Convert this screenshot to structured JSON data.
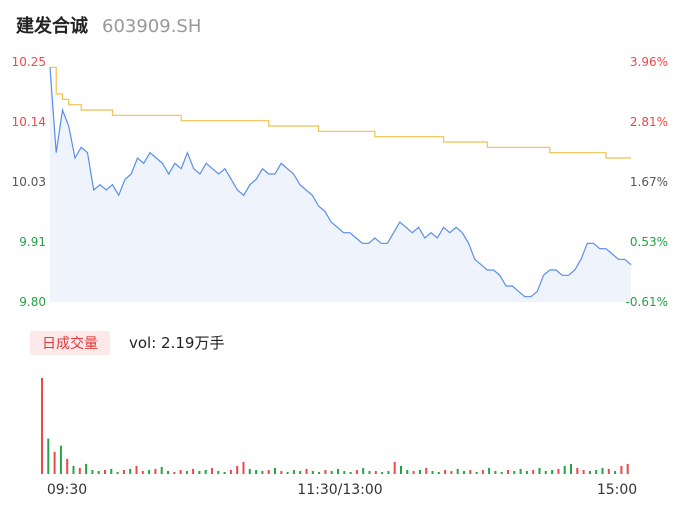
{
  "header": {
    "name": "建发合诚",
    "code": "603909.SH"
  },
  "colors": {
    "up": "#f04848",
    "down": "#25a244",
    "price_line": "#5b8ee6",
    "avg_line": "#f2c14e",
    "area_fill": "#eef3fc",
    "axis_text": "#555555",
    "tag_bg": "#fde9e9",
    "tag_text": "#e03a3a"
  },
  "volume": {
    "tag": "日成交量",
    "text": "vol: 2.19万手"
  },
  "chart_data": {
    "type": "line",
    "title": "",
    "price_axis": {
      "ticks": [
        "10.25",
        "10.14",
        "10.03",
        "9.91",
        "9.80"
      ],
      "ylim": [
        9.8,
        10.25
      ]
    },
    "percent_axis": {
      "ticks": [
        "3.96%",
        "2.81%",
        "1.67%",
        "0.53%",
        "-0.61%"
      ]
    },
    "x_ticks": [
      "09:30",
      "11:30/13:00",
      "15:00"
    ],
    "series": [
      {
        "key": "price",
        "values": [
          10.24,
          10.08,
          10.16,
          10.13,
          10.07,
          10.09,
          10.08,
          10.01,
          10.02,
          10.01,
          10.02,
          10.0,
          10.03,
          10.04,
          10.07,
          10.06,
          10.08,
          10.07,
          10.06,
          10.04,
          10.06,
          10.05,
          10.08,
          10.05,
          10.04,
          10.06,
          10.05,
          10.04,
          10.05,
          10.03,
          10.01,
          10.0,
          10.02,
          10.03,
          10.05,
          10.04,
          10.04,
          10.06,
          10.05,
          10.04,
          10.02,
          10.01,
          10.0,
          9.98,
          9.97,
          9.95,
          9.94,
          9.93,
          9.93,
          9.92,
          9.91,
          9.91,
          9.92,
          9.91,
          9.91,
          9.93,
          9.95,
          9.94,
          9.93,
          9.94,
          9.92,
          9.93,
          9.92,
          9.94,
          9.93,
          9.94,
          9.93,
          9.91,
          9.88,
          9.87,
          9.86,
          9.86,
          9.85,
          9.83,
          9.83,
          9.82,
          9.81,
          9.81,
          9.82,
          9.85,
          9.86,
          9.86,
          9.85,
          9.85,
          9.86,
          9.88,
          9.91,
          9.91,
          9.9,
          9.9,
          9.89,
          9.88,
          9.88,
          9.87
        ]
      },
      {
        "key": "average",
        "values": [
          10.24,
          10.19,
          10.18,
          10.17,
          10.17,
          10.16,
          10.16,
          10.16,
          10.16,
          10.16,
          10.15,
          10.15,
          10.15,
          10.15,
          10.15,
          10.15,
          10.15,
          10.15,
          10.15,
          10.15,
          10.15,
          10.14,
          10.14,
          10.14,
          10.14,
          10.14,
          10.14,
          10.14,
          10.14,
          10.14,
          10.14,
          10.14,
          10.14,
          10.14,
          10.14,
          10.13,
          10.13,
          10.13,
          10.13,
          10.13,
          10.13,
          10.13,
          10.13,
          10.12,
          10.12,
          10.12,
          10.12,
          10.12,
          10.12,
          10.12,
          10.12,
          10.12,
          10.11,
          10.11,
          10.11,
          10.11,
          10.11,
          10.11,
          10.11,
          10.11,
          10.11,
          10.11,
          10.11,
          10.1,
          10.1,
          10.1,
          10.1,
          10.1,
          10.1,
          10.1,
          10.09,
          10.09,
          10.09,
          10.09,
          10.09,
          10.09,
          10.09,
          10.09,
          10.09,
          10.09,
          10.08,
          10.08,
          10.08,
          10.08,
          10.08,
          10.08,
          10.08,
          10.08,
          10.08,
          10.07,
          10.07,
          10.07,
          10.07,
          10.07
        ]
      },
      {
        "key": "volume",
        "values": [
          95,
          35,
          22,
          28,
          15,
          8,
          6,
          10,
          4,
          3,
          4,
          5,
          2,
          4,
          5,
          8,
          3,
          4,
          5,
          7,
          3,
          2,
          4,
          3,
          5,
          3,
          4,
          6,
          3,
          2,
          4,
          8,
          12,
          5,
          4,
          3,
          4,
          6,
          3,
          2,
          4,
          3,
          5,
          3,
          2,
          4,
          3,
          5,
          3,
          2,
          4,
          6,
          3,
          3,
          2,
          3,
          12,
          8,
          4,
          3,
          4,
          6,
          3,
          2,
          4,
          3,
          5,
          3,
          4,
          2,
          4,
          6,
          3,
          2,
          4,
          3,
          5,
          3,
          4,
          6,
          3,
          4,
          5,
          8,
          10,
          6,
          4,
          3,
          4,
          6,
          5,
          3,
          8,
          10
        ]
      }
    ],
    "volume_colors": [
      "up",
      "down",
      "up",
      "down",
      "up",
      "down",
      "up",
      "down",
      "down",
      "down",
      "up",
      "down",
      "down",
      "up",
      "down",
      "up",
      "up",
      "down",
      "up",
      "down",
      "down",
      "up",
      "up",
      "down",
      "up",
      "down",
      "down",
      "up",
      "down",
      "down",
      "up",
      "up",
      "up",
      "down",
      "down",
      "down",
      "up",
      "down",
      "up",
      "down",
      "down",
      "down",
      "up",
      "down",
      "down",
      "up",
      "down",
      "down",
      "down",
      "down",
      "up",
      "down",
      "down",
      "up",
      "down",
      "down",
      "up",
      "down",
      "down",
      "up",
      "down",
      "up",
      "down",
      "down",
      "up",
      "up",
      "down",
      "down",
      "up",
      "down",
      "up",
      "down",
      "down",
      "down",
      "up",
      "down",
      "down",
      "down",
      "up",
      "down",
      "down",
      "down",
      "up",
      "down",
      "down",
      "up",
      "up",
      "down",
      "down",
      "down",
      "up",
      "down",
      "up",
      "up"
    ]
  }
}
